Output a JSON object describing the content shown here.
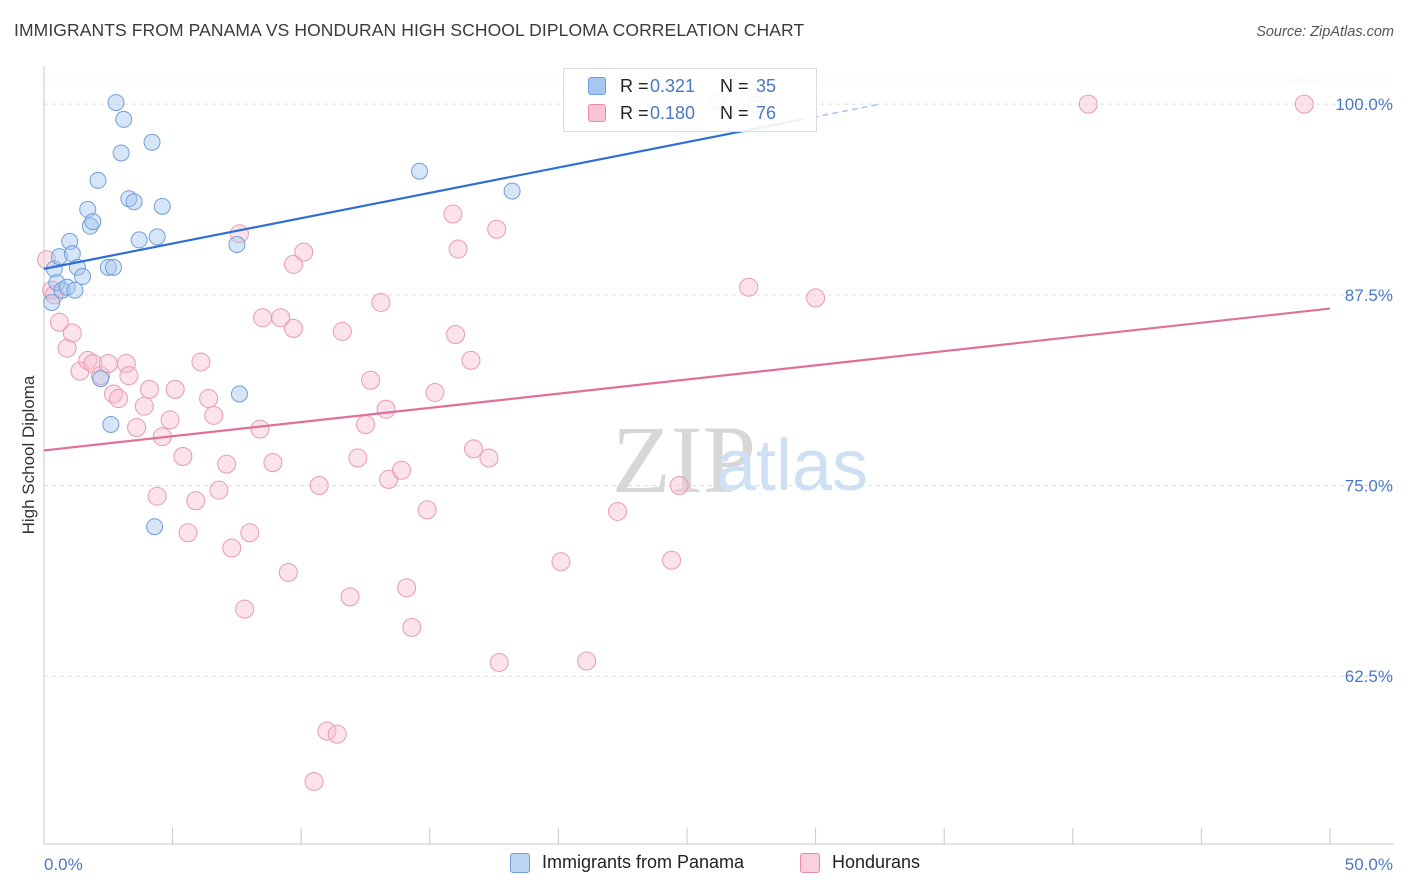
{
  "header": {
    "title": "IMMIGRANTS FROM PANAMA VS HONDURAN HIGH SCHOOL DIPLOMA CORRELATION CHART",
    "source": "Source: ZipAtlas.com"
  },
  "watermark": {
    "zip": "ZIP",
    "atlas": "atlas"
  },
  "legend": {
    "rows": [
      {
        "r_label": "R =",
        "r_value": "0.321",
        "n_label": "N =",
        "n_value": "35",
        "color": "#a7c6f0",
        "border": "#6f9fd8"
      },
      {
        "r_label": "R =",
        "r_value": "0.180",
        "n_label": "N =",
        "n_value": "76",
        "color": "#f8c4d3",
        "border": "#e88aa8"
      }
    ]
  },
  "bottom_legend": {
    "items": [
      {
        "label": "Immigrants from Panama",
        "color": "#bcd4f4",
        "border": "#6f9fd8"
      },
      {
        "label": "Hondurans",
        "color": "#fad0dc",
        "border": "#e88aa8"
      }
    ]
  },
  "chart_data": {
    "type": "scatter",
    "title": "IMMIGRANTS FROM PANAMA VS HONDURAN HIGH SCHOOL DIPLOMA CORRELATION CHART",
    "xlabel": "",
    "ylabel": "High School Diploma",
    "xlim": [
      0,
      50
    ],
    "ylim": [
      51.5,
      102.5
    ],
    "x_tick_labels": [
      "0.0%",
      "50.0%"
    ],
    "y_ticks": [
      62.5,
      75.0,
      87.5,
      100.0
    ],
    "y_tick_labels": [
      "62.5%",
      "75.0%",
      "87.5%",
      "100.0%"
    ],
    "grid": true,
    "colors": {
      "panama": "#4a86d6",
      "panama_line": "#2e6fd1",
      "honduran": "#e06f98",
      "honduran_line": "#e0709a",
      "tick_text": "#4a78c8"
    },
    "series": [
      {
        "name": "Immigrants from Panama",
        "points": [
          [
            0.3,
            87.0
          ],
          [
            0.4,
            89.2
          ],
          [
            0.5,
            88.3
          ],
          [
            0.6,
            90.0
          ],
          [
            0.7,
            87.8
          ],
          [
            0.9,
            88.0
          ],
          [
            1.0,
            91.0
          ],
          [
            1.1,
            90.2
          ],
          [
            1.2,
            87.8
          ],
          [
            1.3,
            89.3
          ],
          [
            1.5,
            88.7
          ],
          [
            1.7,
            93.1
          ],
          [
            1.8,
            92.0
          ],
          [
            1.9,
            92.3
          ],
          [
            2.1,
            95.0
          ],
          [
            2.5,
            89.3
          ],
          [
            2.7,
            89.3
          ],
          [
            2.8,
            100.1
          ],
          [
            3.0,
            96.8
          ],
          [
            3.1,
            99.0
          ],
          [
            3.3,
            93.8
          ],
          [
            3.5,
            93.6
          ],
          [
            3.7,
            91.1
          ],
          [
            4.2,
            97.5
          ],
          [
            4.4,
            91.3
          ],
          [
            4.6,
            93.3
          ],
          [
            2.2,
            82.0
          ],
          [
            2.6,
            79.0
          ],
          [
            4.3,
            72.3
          ],
          [
            7.5,
            90.8
          ],
          [
            7.6,
            81.0
          ],
          [
            14.6,
            95.6
          ],
          [
            18.2,
            94.3
          ],
          [
            26.2,
            100.2
          ],
          [
            27.7,
            100.0
          ]
        ],
        "trend": {
          "x": [
            0,
            32.5
          ],
          "y": [
            89.2,
            100.0
          ],
          "dashed_from_x": 29.5
        }
      },
      {
        "name": "Hondurans",
        "points": [
          [
            0.1,
            89.8
          ],
          [
            0.3,
            87.8
          ],
          [
            0.4,
            87.5
          ],
          [
            0.6,
            85.7
          ],
          [
            0.9,
            84.0
          ],
          [
            1.1,
            85.0
          ],
          [
            1.4,
            82.5
          ],
          [
            1.7,
            83.2
          ],
          [
            1.9,
            83.0
          ],
          [
            2.2,
            82.2
          ],
          [
            2.5,
            83.0
          ],
          [
            2.7,
            81.0
          ],
          [
            2.9,
            80.7
          ],
          [
            3.2,
            83.0
          ],
          [
            3.3,
            82.2
          ],
          [
            3.6,
            78.8
          ],
          [
            3.9,
            80.2
          ],
          [
            4.1,
            81.3
          ],
          [
            4.4,
            74.3
          ],
          [
            4.6,
            78.2
          ],
          [
            4.9,
            79.3
          ],
          [
            5.1,
            81.3
          ],
          [
            5.4,
            76.9
          ],
          [
            5.6,
            71.9
          ],
          [
            5.9,
            74.0
          ],
          [
            6.1,
            83.1
          ],
          [
            6.4,
            80.7
          ],
          [
            6.6,
            79.6
          ],
          [
            6.8,
            74.7
          ],
          [
            7.1,
            76.4
          ],
          [
            7.3,
            70.9
          ],
          [
            7.6,
            91.5
          ],
          [
            7.8,
            66.9
          ],
          [
            8.0,
            71.9
          ],
          [
            8.4,
            78.7
          ],
          [
            8.5,
            86.0
          ],
          [
            8.9,
            76.5
          ],
          [
            9.2,
            86.0
          ],
          [
            9.5,
            69.3
          ],
          [
            9.7,
            85.3
          ],
          [
            9.7,
            89.5
          ],
          [
            10.1,
            90.3
          ],
          [
            10.7,
            75.0
          ],
          [
            11.0,
            58.9
          ],
          [
            11.4,
            58.7
          ],
          [
            10.5,
            55.6
          ],
          [
            11.6,
            85.1
          ],
          [
            11.9,
            67.7
          ],
          [
            12.2,
            76.8
          ],
          [
            12.5,
            79.0
          ],
          [
            12.7,
            81.9
          ],
          [
            13.1,
            87.0
          ],
          [
            13.3,
            80.0
          ],
          [
            13.4,
            75.4
          ],
          [
            13.9,
            76.0
          ],
          [
            14.1,
            68.3
          ],
          [
            14.3,
            65.7
          ],
          [
            14.9,
            73.4
          ],
          [
            15.2,
            81.1
          ],
          [
            15.9,
            92.8
          ],
          [
            16.0,
            84.9
          ],
          [
            16.1,
            90.5
          ],
          [
            16.6,
            83.2
          ],
          [
            16.7,
            77.4
          ],
          [
            17.3,
            76.8
          ],
          [
            17.6,
            91.8
          ],
          [
            17.7,
            63.4
          ],
          [
            20.1,
            70.0
          ],
          [
            21.1,
            63.5
          ],
          [
            22.3,
            73.3
          ],
          [
            24.4,
            70.1
          ],
          [
            24.7,
            75.0
          ],
          [
            27.4,
            88.0
          ],
          [
            30.0,
            87.3
          ],
          [
            40.6,
            100.0
          ],
          [
            49.0,
            100.0
          ]
        ],
        "trend": {
          "x": [
            0,
            50
          ],
          "y": [
            77.3,
            86.6
          ]
        }
      }
    ]
  }
}
